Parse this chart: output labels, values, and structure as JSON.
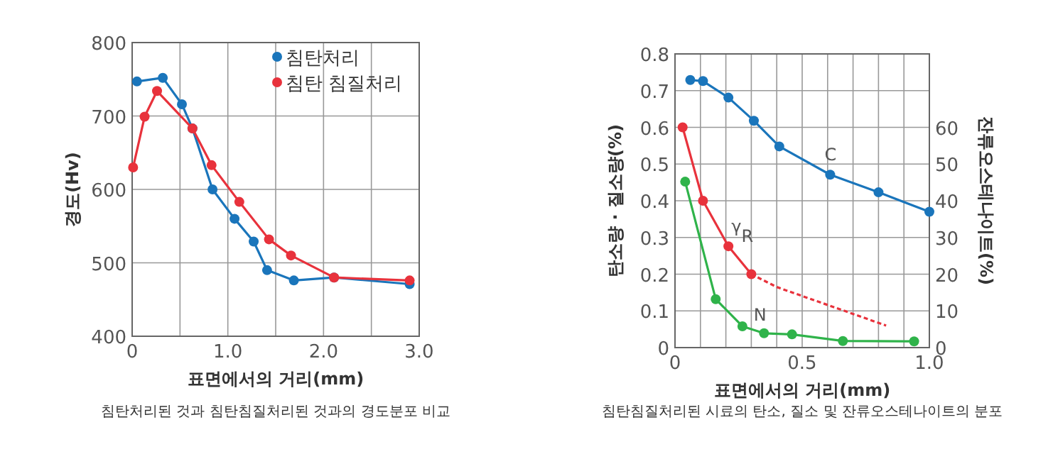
{
  "chart_data": [
    {
      "type": "line",
      "xlabel": "표면에서의 거리(mm)",
      "ylabel": "경도(Hv)",
      "xlim": [
        0,
        3
      ],
      "ylim": [
        400,
        800
      ],
      "xticks": [
        0,
        {
          "value": 0.5,
          "label": null
        },
        {
          "value": 1,
          "label": "1.0"
        },
        {
          "value": 1.5,
          "label": null
        },
        {
          "value": 2,
          "label": "2.0"
        },
        {
          "value": 2.5,
          "label": null
        },
        {
          "value": 3,
          "label": "3.0"
        }
      ],
      "yticks": [
        400,
        500,
        600,
        700,
        800
      ],
      "grid": true,
      "legend": "top right",
      "marker": "circle",
      "line_style": "solid",
      "series": [
        {
          "name": "침탄처리",
          "color": "#1a75bb",
          "x": [
            0.05,
            0.32,
            0.52,
            0.63,
            0.84,
            1.07,
            1.27,
            1.41,
            1.69,
            2.11,
            2.9
          ],
          "values": [
            747,
            752,
            716,
            683,
            600,
            560,
            529,
            490,
            476,
            480,
            471
          ]
        },
        {
          "name": "침탄 침질처리",
          "color": "#e8323c",
          "x": [
            0.01,
            0.13,
            0.26,
            0.63,
            0.83,
            1.12,
            1.43,
            1.66,
            2.11,
            2.9
          ],
          "values": [
            630,
            699,
            734,
            683,
            633,
            583,
            532,
            510,
            480,
            476
          ]
        }
      ],
      "annotations": [
        "침탄처리된 것과 침탄침질처리된 것과의 경도분포 비교"
      ]
    },
    {
      "type": "line",
      "xlabel": "표면에서의 거리(mm)",
      "ylabel": "탄소량 · 질소량(%)",
      "y2label": "잔류오스테나이트(%)",
      "xlim": [
        0,
        1
      ],
      "ylim": [
        0,
        0.8
      ],
      "y2lim": [
        0,
        80
      ],
      "xticks": [
        0,
        {
          "value": 0.1,
          "label": null
        },
        {
          "value": 0.2,
          "label": null
        },
        {
          "value": 0.3,
          "label": null
        },
        {
          "value": 0.4,
          "label": null
        },
        {
          "value": 0.5,
          "label": "0.5"
        },
        {
          "value": 0.6,
          "label": null
        },
        {
          "value": 0.7,
          "label": null
        },
        {
          "value": 0.8,
          "label": null
        },
        {
          "value": 0.9,
          "label": null
        },
        {
          "value": 1,
          "label": "1.0"
        }
      ],
      "yticks": [
        0,
        0.1,
        0.2,
        0.3,
        0.4,
        0.5,
        0.6,
        0.7,
        0.8
      ],
      "y2ticks": [
        0,
        10,
        20,
        30,
        40,
        50,
        60
      ],
      "grid": true,
      "marker": "circle",
      "line_style": "solid",
      "series": [
        {
          "name": "C",
          "color": "#1a75bb",
          "x": [
            0.06,
            0.11,
            0.21,
            0.31,
            0.41,
            0.61,
            0.8,
            1.0
          ],
          "values": [
            0.729,
            0.726,
            0.681,
            0.618,
            0.548,
            0.471,
            0.423,
            0.37
          ]
        },
        {
          "name": "γ$_{R}$",
          "color": "#e8323c",
          "axis": "y2",
          "x": [
            0.03,
            0.11,
            0.21,
            0.3
          ],
          "values": [
            60,
            40,
            27.6,
            20
          ]
        },
        {
          "color": "#e8323c",
          "axis": "y2",
          "line_style": "dashed",
          "marker": "none",
          "x": [
            0.3,
            0.4,
            0.83
          ],
          "values": [
            20,
            16.5,
            6
          ]
        },
        {
          "name": "N",
          "color": "#2fb34a",
          "x": [
            0.04,
            0.16,
            0.265,
            0.35,
            0.46,
            0.66,
            0.94
          ],
          "values": [
            0.452,
            0.132,
            0.058,
            0.039,
            0.036,
            0.018,
            0.017
          ]
        }
      ],
      "annotations": [
        "침탄침질처리된 시료의 탄소, 질소 및 잔류오스테나이트의 분포"
      ]
    }
  ]
}
